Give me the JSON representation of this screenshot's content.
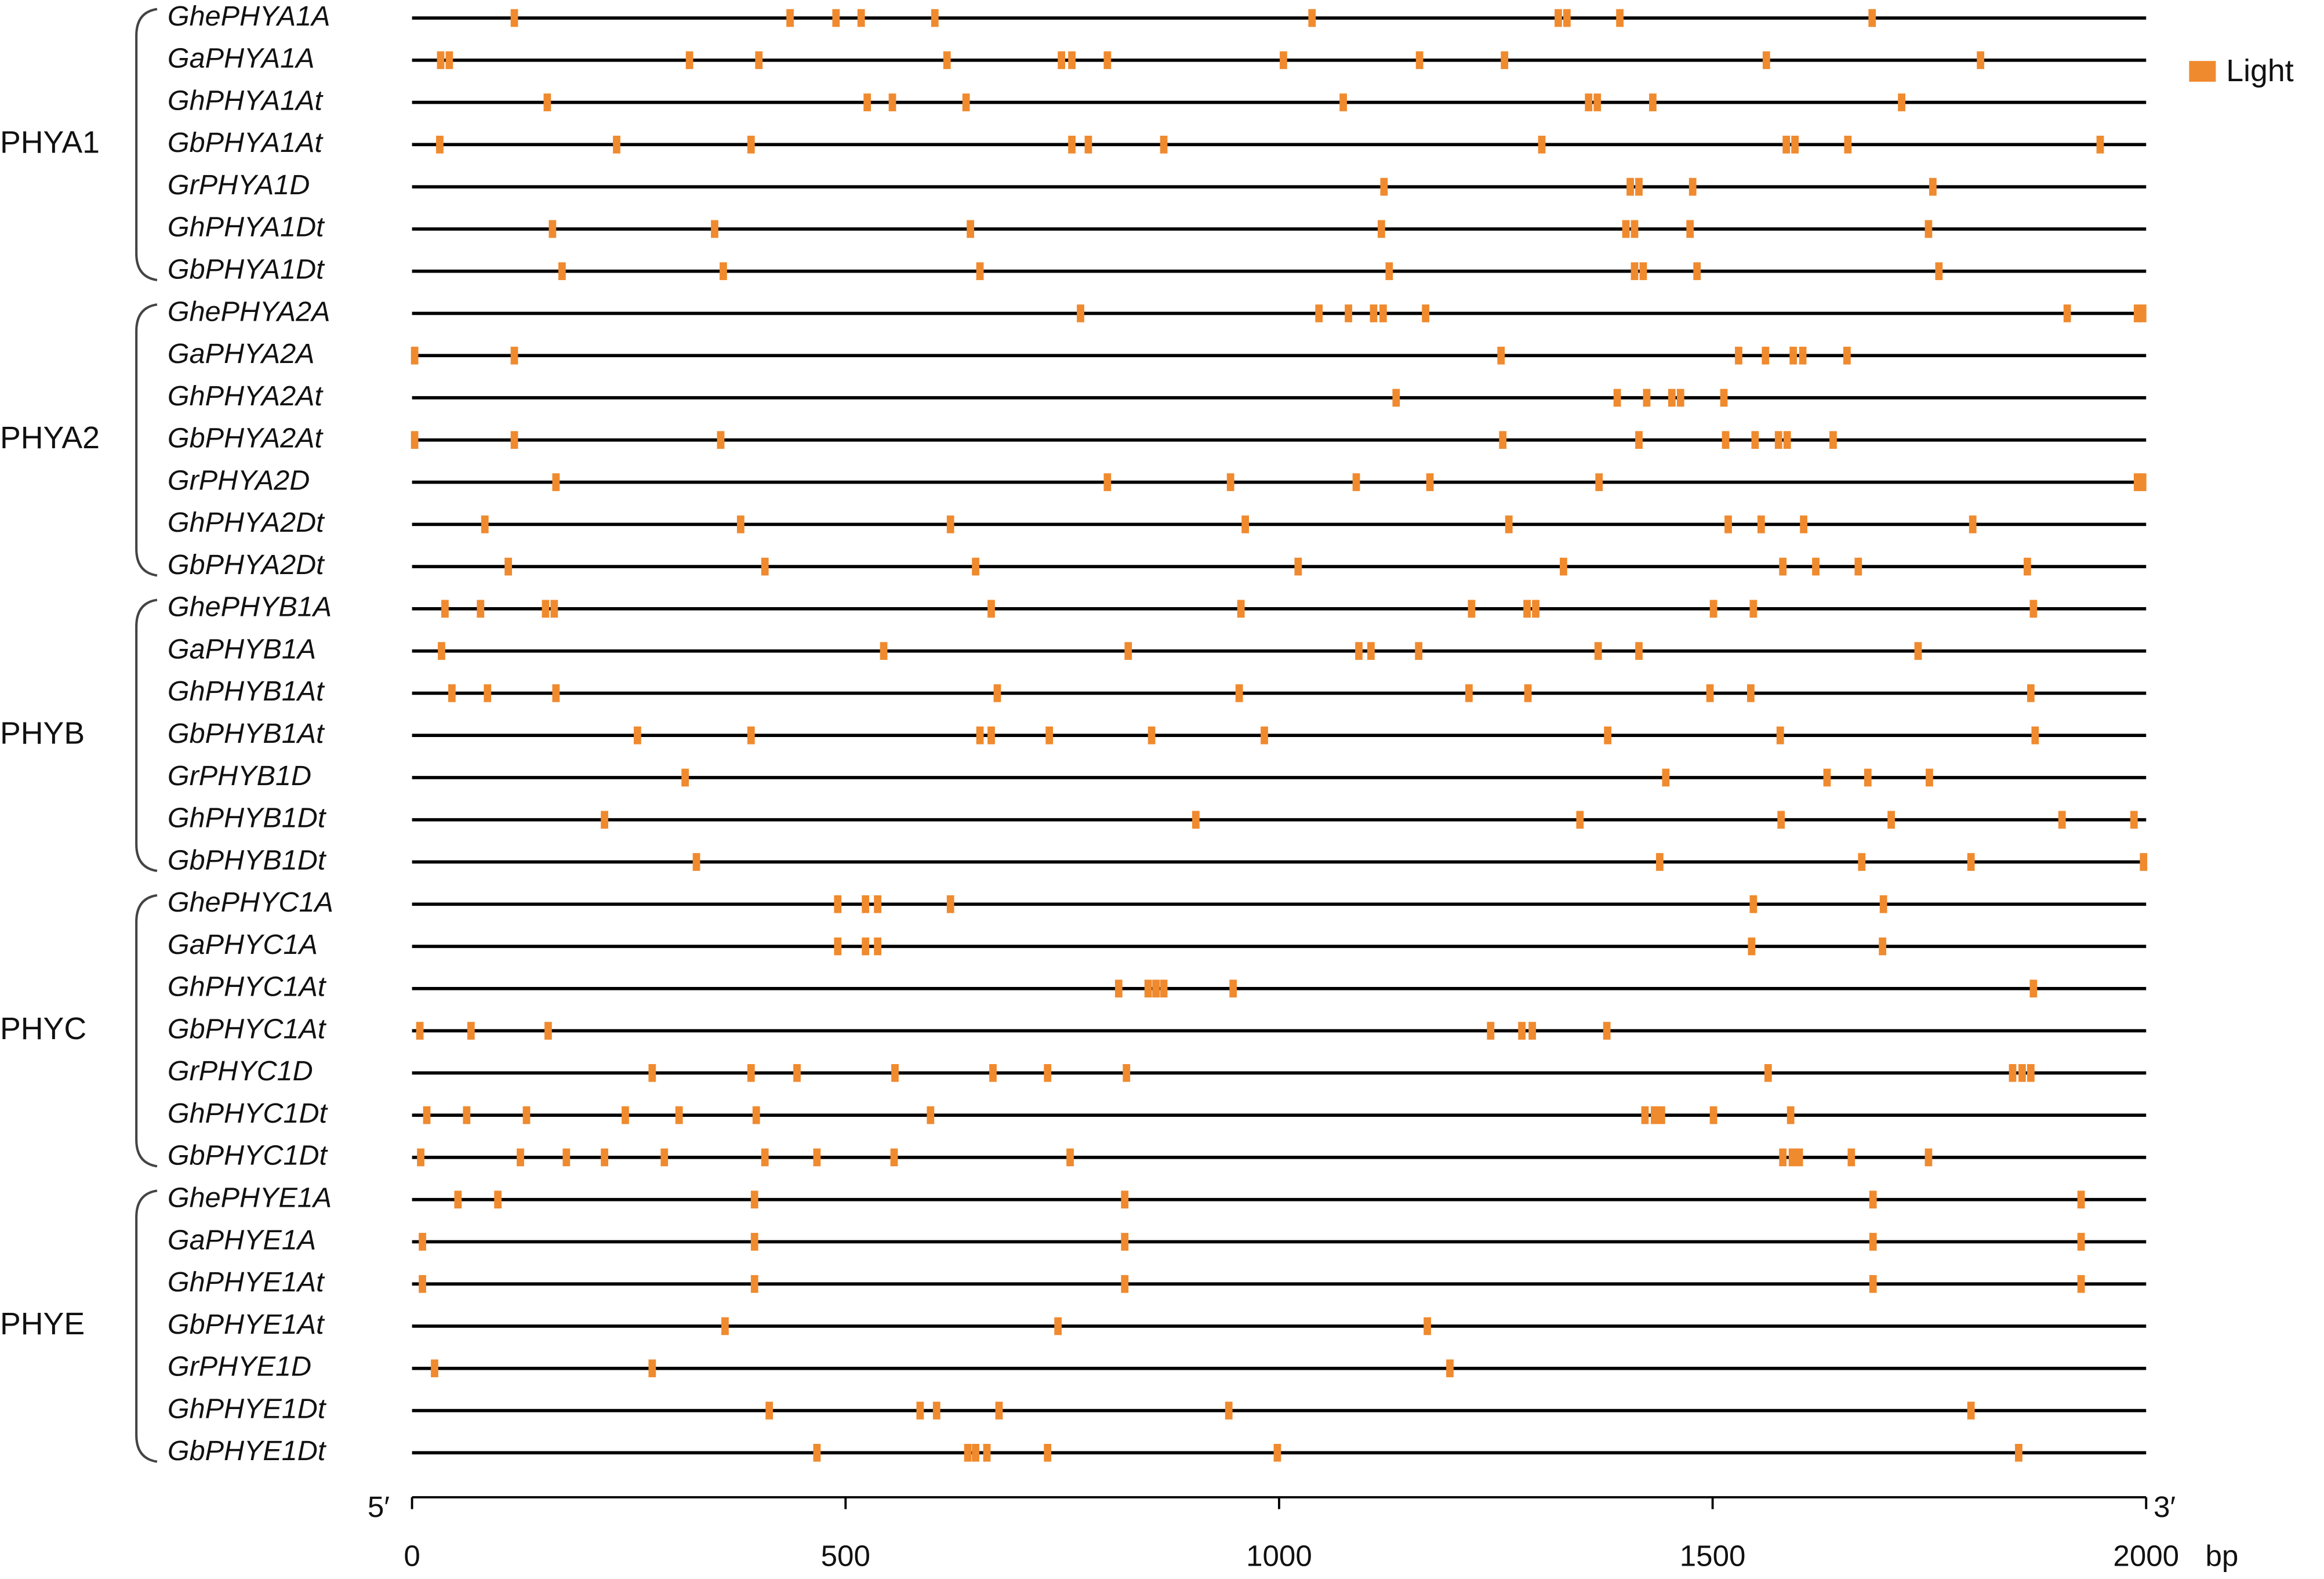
{
  "chart_data": {
    "type": "element_map",
    "legend": {
      "name": "Light",
      "color": "#f08a2e"
    },
    "xlim": [
      0,
      2000
    ],
    "xticks": [
      0,
      500,
      1000,
      1500,
      2000
    ],
    "x_unit": "bp",
    "start_label": "5′",
    "end_label": "3′",
    "groups": [
      {
        "name": "PHYA1",
        "genes": [
          {
            "name": "GhePHYA1A",
            "positions": [
              118,
              436,
              489,
              518,
              603,
              1038,
              1322,
              1332,
              1393,
              1684
            ]
          },
          {
            "name": "GaPHYA1A",
            "positions": [
              33,
              43,
              320,
              400,
              617,
              749,
              761,
              802,
              1005,
              1162,
              1260,
              1562,
              1809
            ]
          },
          {
            "name": "GhPHYA1At",
            "positions": [
              156,
              525,
              554,
              639,
              1074,
              1357,
              1367,
              1431,
              1718
            ]
          },
          {
            "name": "GbPHYA1At",
            "positions": [
              32,
              236,
              391,
              761,
              780,
              867,
              1303,
              1585,
              1595,
              1656,
              1947
            ]
          },
          {
            "name": "GrPHYA1D",
            "positions": [
              1121,
              1405,
              1415,
              1477,
              1754
            ]
          },
          {
            "name": "GhPHYA1Dt",
            "positions": [
              162,
              349,
              644,
              1118,
              1400,
              1410,
              1474,
              1749
            ]
          },
          {
            "name": "GbPHYA1Dt",
            "positions": [
              173,
              359,
              655,
              1127,
              1410,
              1420,
              1482,
              1761
            ]
          }
        ]
      },
      {
        "name": "PHYA2",
        "genes": [
          {
            "name": "GhePHYA2A",
            "positions": [
              771,
              1046,
              1080,
              1109,
              1120,
              1169,
              1909,
              1990,
              1996
            ]
          },
          {
            "name": "GaPHYA2A",
            "positions": [
              3,
              118,
              1256,
              1530,
              1561,
              1593,
              1604,
              1655
            ]
          },
          {
            "name": "GhPHYA2At",
            "positions": [
              1135,
              1390,
              1424,
              1453,
              1463,
              1513
            ]
          },
          {
            "name": "GbPHYA2At",
            "positions": [
              3,
              118,
              356,
              1258,
              1415,
              1515,
              1549,
              1576,
              1586,
              1639
            ]
          },
          {
            "name": "GrPHYA2D",
            "positions": [
              166,
              802,
              944,
              1089,
              1174,
              1369,
              1990,
              1996
            ]
          },
          {
            "name": "GhPHYA2Dt",
            "positions": [
              84,
              379,
              621,
              961,
              1265,
              1518,
              1556,
              1605,
              1800
            ]
          },
          {
            "name": "GbPHYA2Dt",
            "positions": [
              111,
              407,
              650,
              1022,
              1328,
              1581,
              1619,
              1668,
              1863
            ]
          }
        ]
      },
      {
        "name": "PHYB",
        "genes": [
          {
            "name": "GhePHYB1A",
            "positions": [
              38,
              79,
              154,
              164,
              668,
              956,
              1222,
              1286,
              1296,
              1501,
              1547,
              1870
            ]
          },
          {
            "name": "GaPHYB1A",
            "positions": [
              34,
              544,
              826,
              1092,
              1106,
              1161,
              1368,
              1415,
              1737
            ]
          },
          {
            "name": "GhPHYB1At",
            "positions": [
              46,
              87,
              166,
              675,
              954,
              1219,
              1287,
              1497,
              1544,
              1867
            ]
          },
          {
            "name": "GbPHYB1At",
            "positions": [
              260,
              391,
              655,
              668,
              735,
              853,
              983,
              1379,
              1578,
              1872
            ]
          },
          {
            "name": "GrPHYB1D",
            "positions": [
              315,
              1446,
              1632,
              1679,
              1750
            ]
          },
          {
            "name": "GhPHYB1Dt",
            "positions": [
              222,
              904,
              1347,
              1579,
              1706,
              1903,
              1986
            ]
          },
          {
            "name": "GbPHYB1Dt",
            "positions": [
              328,
              1439,
              1672,
              1798,
              1997
            ]
          }
        ]
      },
      {
        "name": "PHYC",
        "genes": [
          {
            "name": "GhePHYC1A",
            "positions": [
              491,
              523,
              537,
              621,
              1547,
              1697
            ]
          },
          {
            "name": "GaPHYC1A",
            "positions": [
              491,
              523,
              537,
              1545,
              1696
            ]
          },
          {
            "name": "GhPHYC1At",
            "positions": [
              815,
              849,
              858,
              867,
              947,
              1870
            ]
          },
          {
            "name": "GbPHYC1At",
            "positions": [
              9,
              68,
              157,
              1244,
              1280,
              1292,
              1378
            ]
          },
          {
            "name": "GrPHYC1D",
            "positions": [
              277,
              391,
              444,
              557,
              670,
              733,
              824,
              1564,
              1846,
              1857,
              1867
            ]
          },
          {
            "name": "GhPHYC1Dt",
            "positions": [
              17,
              63,
              132,
              246,
              308,
              397,
              598,
              1422,
              1433,
              1441,
              1501,
              1590
            ]
          },
          {
            "name": "GbPHYC1Dt",
            "positions": [
              10,
              125,
              178,
              222,
              291,
              407,
              467,
              556,
              759,
              1581,
              1592,
              1600,
              1660,
              1749
            ]
          }
        ]
      },
      {
        "name": "PHYE",
        "genes": [
          {
            "name": "GhePHYE1A",
            "positions": [
              53,
              99,
              395,
              822,
              1685,
              1925
            ]
          },
          {
            "name": "GaPHYE1A",
            "positions": [
              12,
              395,
              822,
              1685,
              1925
            ]
          },
          {
            "name": "GhPHYE1At",
            "positions": [
              12,
              395,
              822,
              1685,
              1925
            ]
          },
          {
            "name": "GbPHYE1At",
            "positions": [
              361,
              745,
              1171
            ]
          },
          {
            "name": "GrPHYE1D",
            "positions": [
              26,
              277,
              1197
            ]
          },
          {
            "name": "GhPHYE1Dt",
            "positions": [
              412,
              586,
              605,
              677,
              942,
              1798
            ]
          },
          {
            "name": "GbPHYE1Dt",
            "positions": [
              467,
              641,
              650,
              663,
              733,
              998,
              1853
            ]
          }
        ]
      }
    ]
  }
}
